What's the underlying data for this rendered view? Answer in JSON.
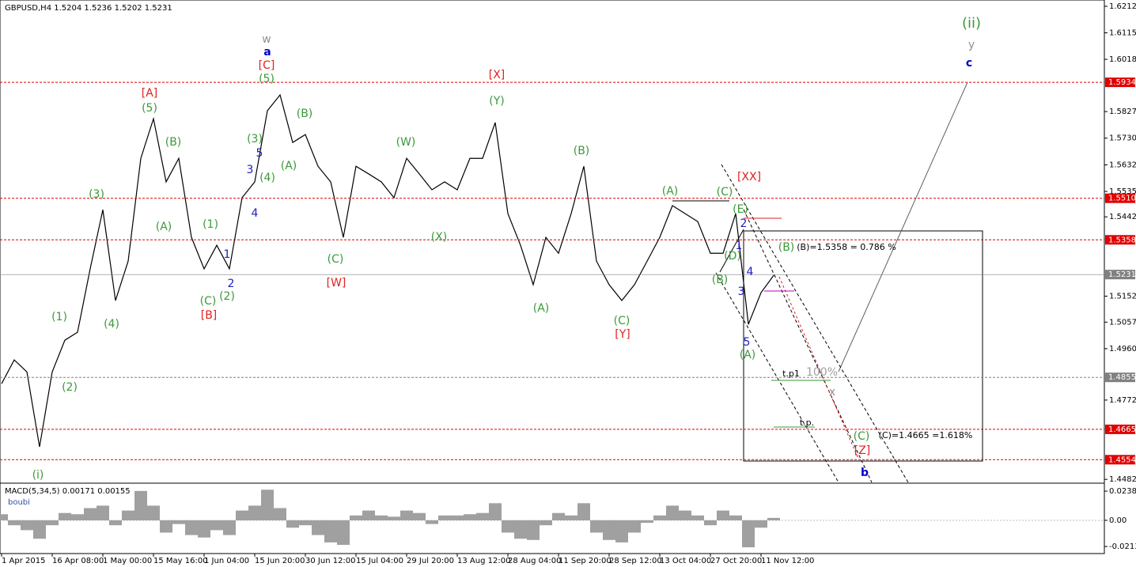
{
  "chart_data": [
    {
      "type": "line",
      "title": "GBPUSD,H4  1.5204 1.5236 1.5202 1.5231",
      "color": "#000000",
      "xtick_labels": [
        "1 Apr 2015",
        "16 Apr 08:00",
        "1 May 00:00",
        "15 May 16:00",
        "1 Jun 04:00",
        "15 Jun 20:00",
        "30 Jun 12:00",
        "15 Jul 04:00",
        "29 Jul 20:00",
        "13 Aug 12:00",
        "28 Aug 04:00",
        "11 Sep 20:00",
        "28 Sep 12:00",
        "13 Oct 04:00",
        "27 Oct 20:00",
        "11 Nov 12:00"
      ],
      "values": [
        1.4832,
        1.4919,
        1.4875,
        1.4601,
        1.4875,
        1.4991,
        1.502,
        1.5252,
        1.5468,
        1.5136,
        1.528,
        1.5656,
        1.5801,
        1.557,
        1.5656,
        1.5367,
        1.5252,
        1.5338,
        1.5252,
        1.5512,
        1.557,
        1.583,
        1.5888,
        1.5714,
        1.5743,
        1.5627,
        1.557,
        1.5367,
        1.5627,
        1.5599,
        1.557,
        1.5512,
        1.5656,
        1.5599,
        1.5541,
        1.557,
        1.5541,
        1.5656,
        1.5656,
        1.5787,
        1.5454,
        1.5338,
        1.5194,
        1.5367,
        1.5309,
        1.5454,
        1.5627,
        1.528,
        1.5194,
        1.5136,
        1.5194,
        1.528,
        1.5367,
        1.5483,
        1.5454,
        1.5425,
        1.5309,
        1.5309,
        1.5454,
        1.5049,
        1.5165,
        1.5228
      ],
      "ylim": [
        1.4471,
        1.6235
      ],
      "yticks": [
        1.6212,
        1.6115,
        1.6018,
        1.5827,
        {
          "value": 1.573,
          "label": "1.5730"
        },
        1.5632,
        1.5535,
        1.5442,
        1.5152,
        1.5057,
        {
          "value": 1.496,
          "label": "1.4960"
        },
        1.4772,
        1.4482
      ],
      "levels": [
        {
          "value": 1.5934,
          "color": "#e00000"
        },
        {
          "value": 1.551,
          "label": "1.5510",
          "color": "#e00000"
        },
        {
          "value": 1.5358,
          "color": "#e00000"
        },
        {
          "value": 1.5231,
          "color": "#808080"
        },
        {
          "value": 1.4855,
          "color": "#808080"
        },
        {
          "value": 1.4665,
          "color": "#e00000"
        },
        {
          "value": 1.4554,
          "color": "#e00000"
        }
      ],
      "annotations": [
        {
          "text": "(ii)",
          "color": "#3a9a3a"
        },
        {
          "text": "y",
          "color": "#909090"
        },
        {
          "text": "c",
          "color": "#0000cc"
        },
        {
          "text": "w",
          "color": "#909090"
        },
        {
          "text": "a",
          "color": "#0000cc"
        },
        {
          "text": "[C]",
          "color": "#e02020"
        },
        {
          "text": "(5)",
          "color": "#3a9a3a"
        },
        {
          "text": "[X]",
          "color": "#e02020"
        },
        {
          "text": "[A]",
          "color": "#e02020"
        },
        {
          "text": "(5)",
          "color": "#3a9a3a"
        },
        {
          "text": "(Y)",
          "color": "#3a9a3a"
        },
        {
          "text": "(B)",
          "color": "#3a9a3a"
        },
        {
          "text": "(3)",
          "color": "#3a9a3a"
        },
        {
          "text": "5",
          "color": "#2020c0"
        },
        {
          "text": "(B)",
          "color": "#3a9a3a"
        },
        {
          "text": "(W)",
          "color": "#3a9a3a"
        },
        {
          "text": "(B)",
          "color": "#3a9a3a"
        },
        {
          "text": "3",
          "color": "#2020c0"
        },
        {
          "text": "(4)",
          "color": "#3a9a3a"
        },
        {
          "text": "(A)",
          "color": "#3a9a3a"
        },
        {
          "text": "[XX]",
          "color": "#e02020"
        },
        {
          "text": "(3)",
          "color": "#3a9a3a"
        },
        {
          "text": "(A)",
          "color": "#3a9a3a"
        },
        {
          "text": "(C)",
          "color": "#3a9a3a"
        },
        {
          "text": "(E)",
          "color": "#3a9a3a"
        },
        {
          "text": "4",
          "color": "#2020c0"
        },
        {
          "text": "2",
          "color": "#2020c0"
        },
        {
          "text": "(1)",
          "color": "#3a9a3a"
        },
        {
          "text": "(A)",
          "color": "#3a9a3a"
        },
        {
          "text": "(X)",
          "color": "#3a9a3a"
        },
        {
          "text": "1",
          "color": "#2020c0"
        },
        {
          "text": "(B)",
          "color": "#3a9a3a"
        },
        {
          "text": "(B)=1.5358 = 0.786 %",
          "color": "#000000"
        },
        {
          "text": "(D)",
          "color": "#3a9a3a"
        },
        {
          "text": "1",
          "color": "#2020c0"
        },
        {
          "text": "(C)",
          "color": "#3a9a3a"
        },
        {
          "text": "4",
          "color": "#2020c0"
        },
        {
          "text": "(B)",
          "color": "#3a9a3a"
        },
        {
          "text": "2",
          "color": "#2020c0"
        },
        {
          "text": "[W]",
          "color": "#e02020"
        },
        {
          "text": "3",
          "color": "#2020c0"
        },
        {
          "text": "(C)",
          "color": "#3a9a3a"
        },
        {
          "text": "(2)",
          "color": "#3a9a3a"
        },
        {
          "text": "(A)",
          "color": "#3a9a3a"
        },
        {
          "text": "[B]",
          "color": "#e02020"
        },
        {
          "text": "(1)",
          "color": "#3a9a3a"
        },
        {
          "text": "(4)",
          "color": "#3a9a3a"
        },
        {
          "text": "(C)",
          "color": "#3a9a3a"
        },
        {
          "text": "[Y]",
          "color": "#e02020"
        },
        {
          "text": "5",
          "color": "#2020c0"
        },
        {
          "text": "(A)",
          "color": "#3a9a3a"
        },
        {
          "text": "t.p1",
          "color": "#000000"
        },
        {
          "text": "100%",
          "color": "#a0a0a0"
        },
        {
          "text": "x",
          "color": "#909090"
        },
        {
          "text": "(2)",
          "color": "#3a9a3a"
        },
        {
          "text": "t.p.",
          "color": "#000000"
        },
        {
          "text": "(C)",
          "color": "#3a9a3a"
        },
        {
          "text": "(C)=1.4665 =1.618%",
          "color": "#000000"
        },
        {
          "text": "[Z]",
          "color": "#e02020"
        },
        {
          "text": "b",
          "color": "#0000cc"
        },
        {
          "text": "(i)",
          "color": "#3a9a3a"
        }
      ]
    },
    {
      "type": "bar",
      "title": "MACD(5,34,5) 0.00171 0.00155",
      "subtitle": "boubi",
      "color": "#a0a0a0",
      "values": [
        0.005,
        -0.004,
        -0.008,
        -0.015,
        -0.004,
        0.006,
        0.005,
        0.01,
        0.012,
        -0.004,
        0.008,
        0.024,
        0.012,
        -0.01,
        -0.003,
        -0.012,
        -0.014,
        -0.008,
        -0.012,
        0.008,
        0.012,
        0.025,
        0.01,
        -0.006,
        -0.004,
        -0.012,
        -0.018,
        -0.02,
        0.004,
        0.008,
        0.004,
        0.003,
        0.008,
        0.006,
        -0.003,
        0.004,
        0.004,
        0.005,
        0.006,
        0.014,
        -0.01,
        -0.015,
        -0.016,
        -0.004,
        0.006,
        0.004,
        0.014,
        -0.01,
        -0.016,
        -0.018,
        -0.01,
        -0.002,
        0.004,
        0.012,
        0.008,
        0.004,
        -0.004,
        0.008,
        0.004,
        -0.022,
        -0.006,
        0.002
      ],
      "ylim": [
        -0.0271,
        0.0284
      ],
      "yticks": [
        0.02386,
        {
          "value": 0,
          "label": "0.00"
        },
        -0.02132
      ]
    }
  ]
}
